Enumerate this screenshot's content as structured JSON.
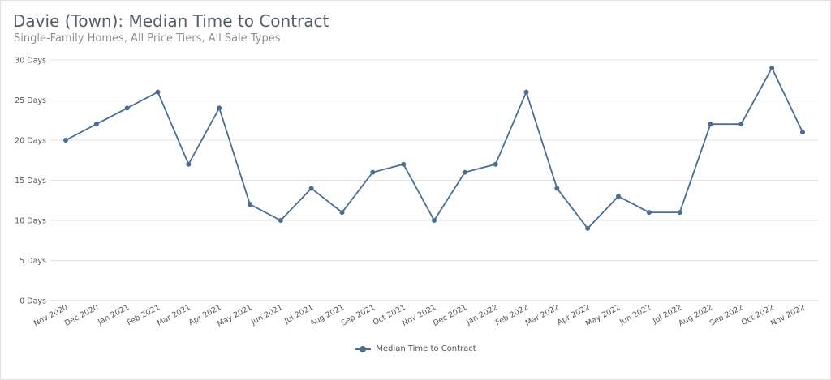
{
  "header": {
    "title": "Davie (Town): Median Time to Contract",
    "subtitle": "Single-Family Homes, All Price Tiers, All Sale Types"
  },
  "legend": {
    "label": "Median Time to Contract"
  },
  "colors": {
    "series": "#4a6e91",
    "grid": "#e3e3e3",
    "axis_text": "#555555"
  },
  "chart_data": {
    "type": "line",
    "title": "Davie (Town): Median Time to Contract",
    "subtitle": "Single-Family Homes, All Price Tiers, All Sale Types",
    "xlabel": "",
    "ylabel": "",
    "ylim": [
      0,
      30
    ],
    "y_ticks": [
      0,
      5,
      10,
      15,
      20,
      25,
      30
    ],
    "y_tick_labels": [
      "0 Days",
      "5 Days",
      "10 Days",
      "15 Days",
      "20 Days",
      "25 Days",
      "30 Days"
    ],
    "grid": true,
    "legend_position": "bottom",
    "categories": [
      "Nov 2020",
      "Dec 2020",
      "Jan 2021",
      "Feb 2021",
      "Mar 2021",
      "Apr 2021",
      "May 2021",
      "Jun 2021",
      "Jul 2021",
      "Aug 2021",
      "Sep 2021",
      "Oct 2021",
      "Nov 2021",
      "Dec 2021",
      "Jan 2022",
      "Feb 2022",
      "Mar 2022",
      "Apr 2022",
      "May 2022",
      "Jun 2022",
      "Jul 2022",
      "Aug 2022",
      "Sep 2022",
      "Oct 2022",
      "Nov 2022"
    ],
    "series": [
      {
        "name": "Median Time to Contract",
        "values": [
          20,
          22,
          24,
          26,
          17,
          24,
          12,
          10,
          14,
          11,
          16,
          17,
          10,
          16,
          17,
          26,
          14,
          9,
          13,
          11,
          11,
          22,
          22,
          29,
          21
        ]
      }
    ]
  }
}
